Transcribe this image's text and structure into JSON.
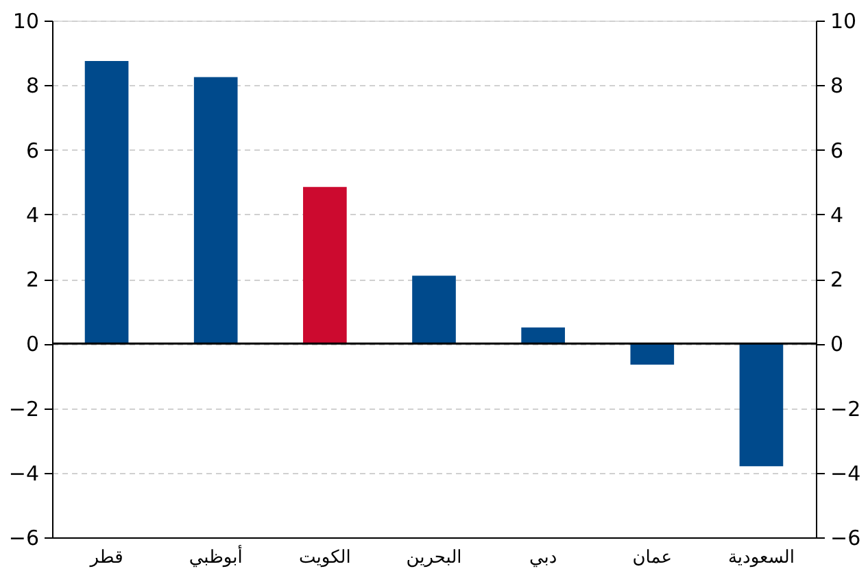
{
  "chart_data": {
    "type": "bar",
    "categories": [
      "قطر",
      "أبوظبي",
      "الكويت",
      "البحرين",
      "دبي",
      "عمان",
      "السعودية"
    ],
    "values": [
      8.75,
      8.25,
      4.85,
      2.1,
      0.5,
      -0.65,
      -3.8
    ],
    "colors": [
      "#004a8c",
      "#004a8c",
      "#cc0a2f",
      "#004a8c",
      "#004a8c",
      "#004a8c",
      "#004a8c"
    ],
    "ylim": [
      -6,
      10
    ],
    "yticks": [
      -6,
      -4,
      -2,
      0,
      2,
      4,
      6,
      8,
      10
    ],
    "y2lim": [
      -6,
      10
    ],
    "y2ticks": [
      -6,
      -4,
      -2,
      0,
      2,
      4,
      6,
      8,
      10
    ],
    "ref_lines": [
      {
        "axis": "y",
        "value": 0,
        "color": "#000000"
      }
    ],
    "grid": "y"
  }
}
